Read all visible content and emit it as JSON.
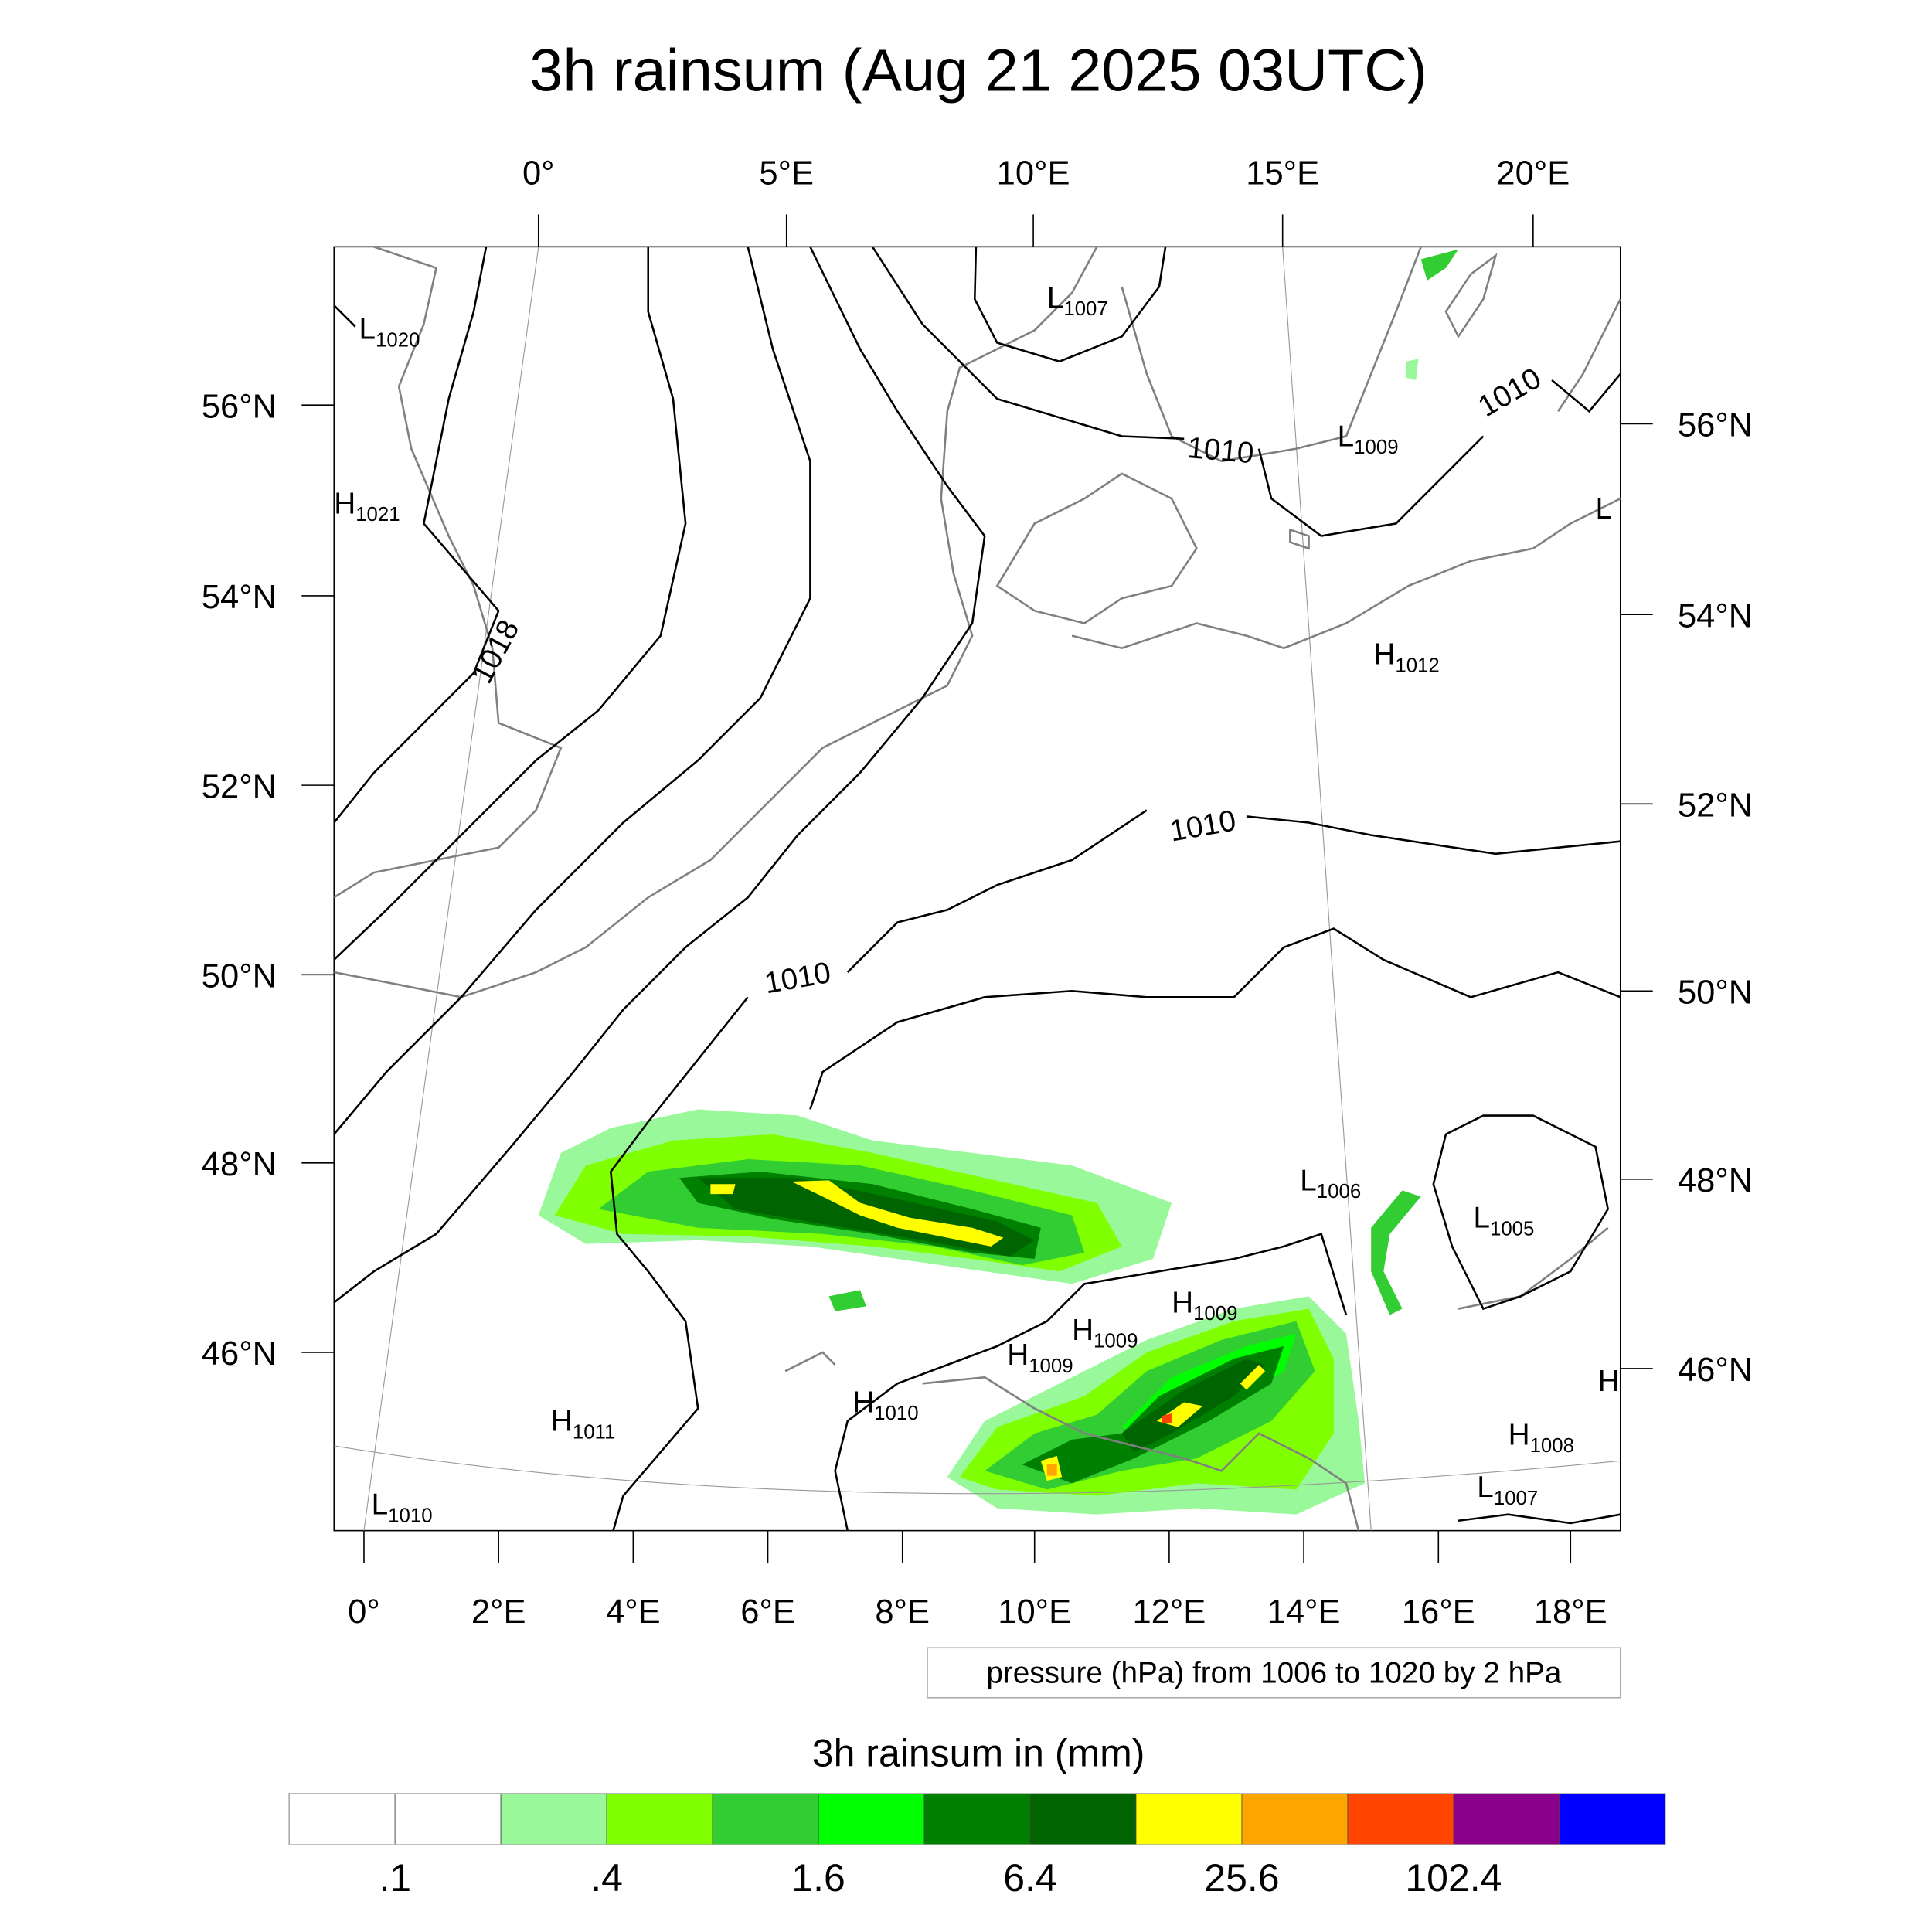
{
  "title": "3h rainsum (Aug 21 2025 03UTC)",
  "top_lon_labels": [
    "0°",
    "5°E",
    "10°E",
    "15°E",
    "20°E"
  ],
  "bottom_lon_labels": [
    "0°",
    "2°E",
    "4°E",
    "6°E",
    "8°E",
    "10°E",
    "12°E",
    "14°E",
    "16°E",
    "18°E"
  ],
  "left_lat_labels": [
    "56°N",
    "54°N",
    "52°N",
    "50°N",
    "48°N",
    "46°N"
  ],
  "right_lat_labels": [
    "56°N",
    "54°N",
    "52°N",
    "50°N",
    "48°N",
    "46°N"
  ],
  "contour_info": "pressure (hPa) from 1006 to 1020 by 2 hPa",
  "chart_data": {
    "type": "heatmap",
    "title": "3h rainsum (Aug 21 2025 03UTC)",
    "variable": "3h rainsum",
    "units": "mm",
    "contour_variable": "pressure (hPa)",
    "contour_levels": {
      "min": 1006,
      "max": 1020,
      "step": 2
    },
    "contour_labels": [
      "1018",
      "1010",
      "1010",
      "1010",
      "1010"
    ],
    "pressure_centers": [
      {
        "type": "L",
        "value": "1020"
      },
      {
        "type": "H",
        "value": "1021"
      },
      {
        "type": "L",
        "value": "1007"
      },
      {
        "type": "L",
        "value": "1009"
      },
      {
        "type": "L",
        "value": ""
      },
      {
        "type": "H",
        "value": "1012"
      },
      {
        "type": "L",
        "value": "1006"
      },
      {
        "type": "L",
        "value": "1005"
      },
      {
        "type": "H",
        "value": "1009"
      },
      {
        "type": "H",
        "value": "1009"
      },
      {
        "type": "H",
        "value": "1009"
      },
      {
        "type": "H",
        "value": "1010"
      },
      {
        "type": "H",
        "value": "1011"
      },
      {
        "type": "H",
        "value": ""
      },
      {
        "type": "H",
        "value": "1008"
      },
      {
        "type": "L",
        "value": "1007"
      },
      {
        "type": "L",
        "value": "1010"
      }
    ],
    "colorbar": {
      "title": "3h rainsum in (mm)",
      "colors": [
        "#FFFFFF",
        "#FFFFFF",
        "#99F899",
        "#80FF00",
        "#32CD32",
        "#00FF00",
        "#008000",
        "#006400",
        "#FFFF00",
        "#FFA500",
        "#FF4500",
        "#8B008B",
        "#0000FF"
      ],
      "labels": [
        ".1",
        ".4",
        "1.6",
        "6.4",
        "25.6",
        "102.4"
      ]
    }
  }
}
